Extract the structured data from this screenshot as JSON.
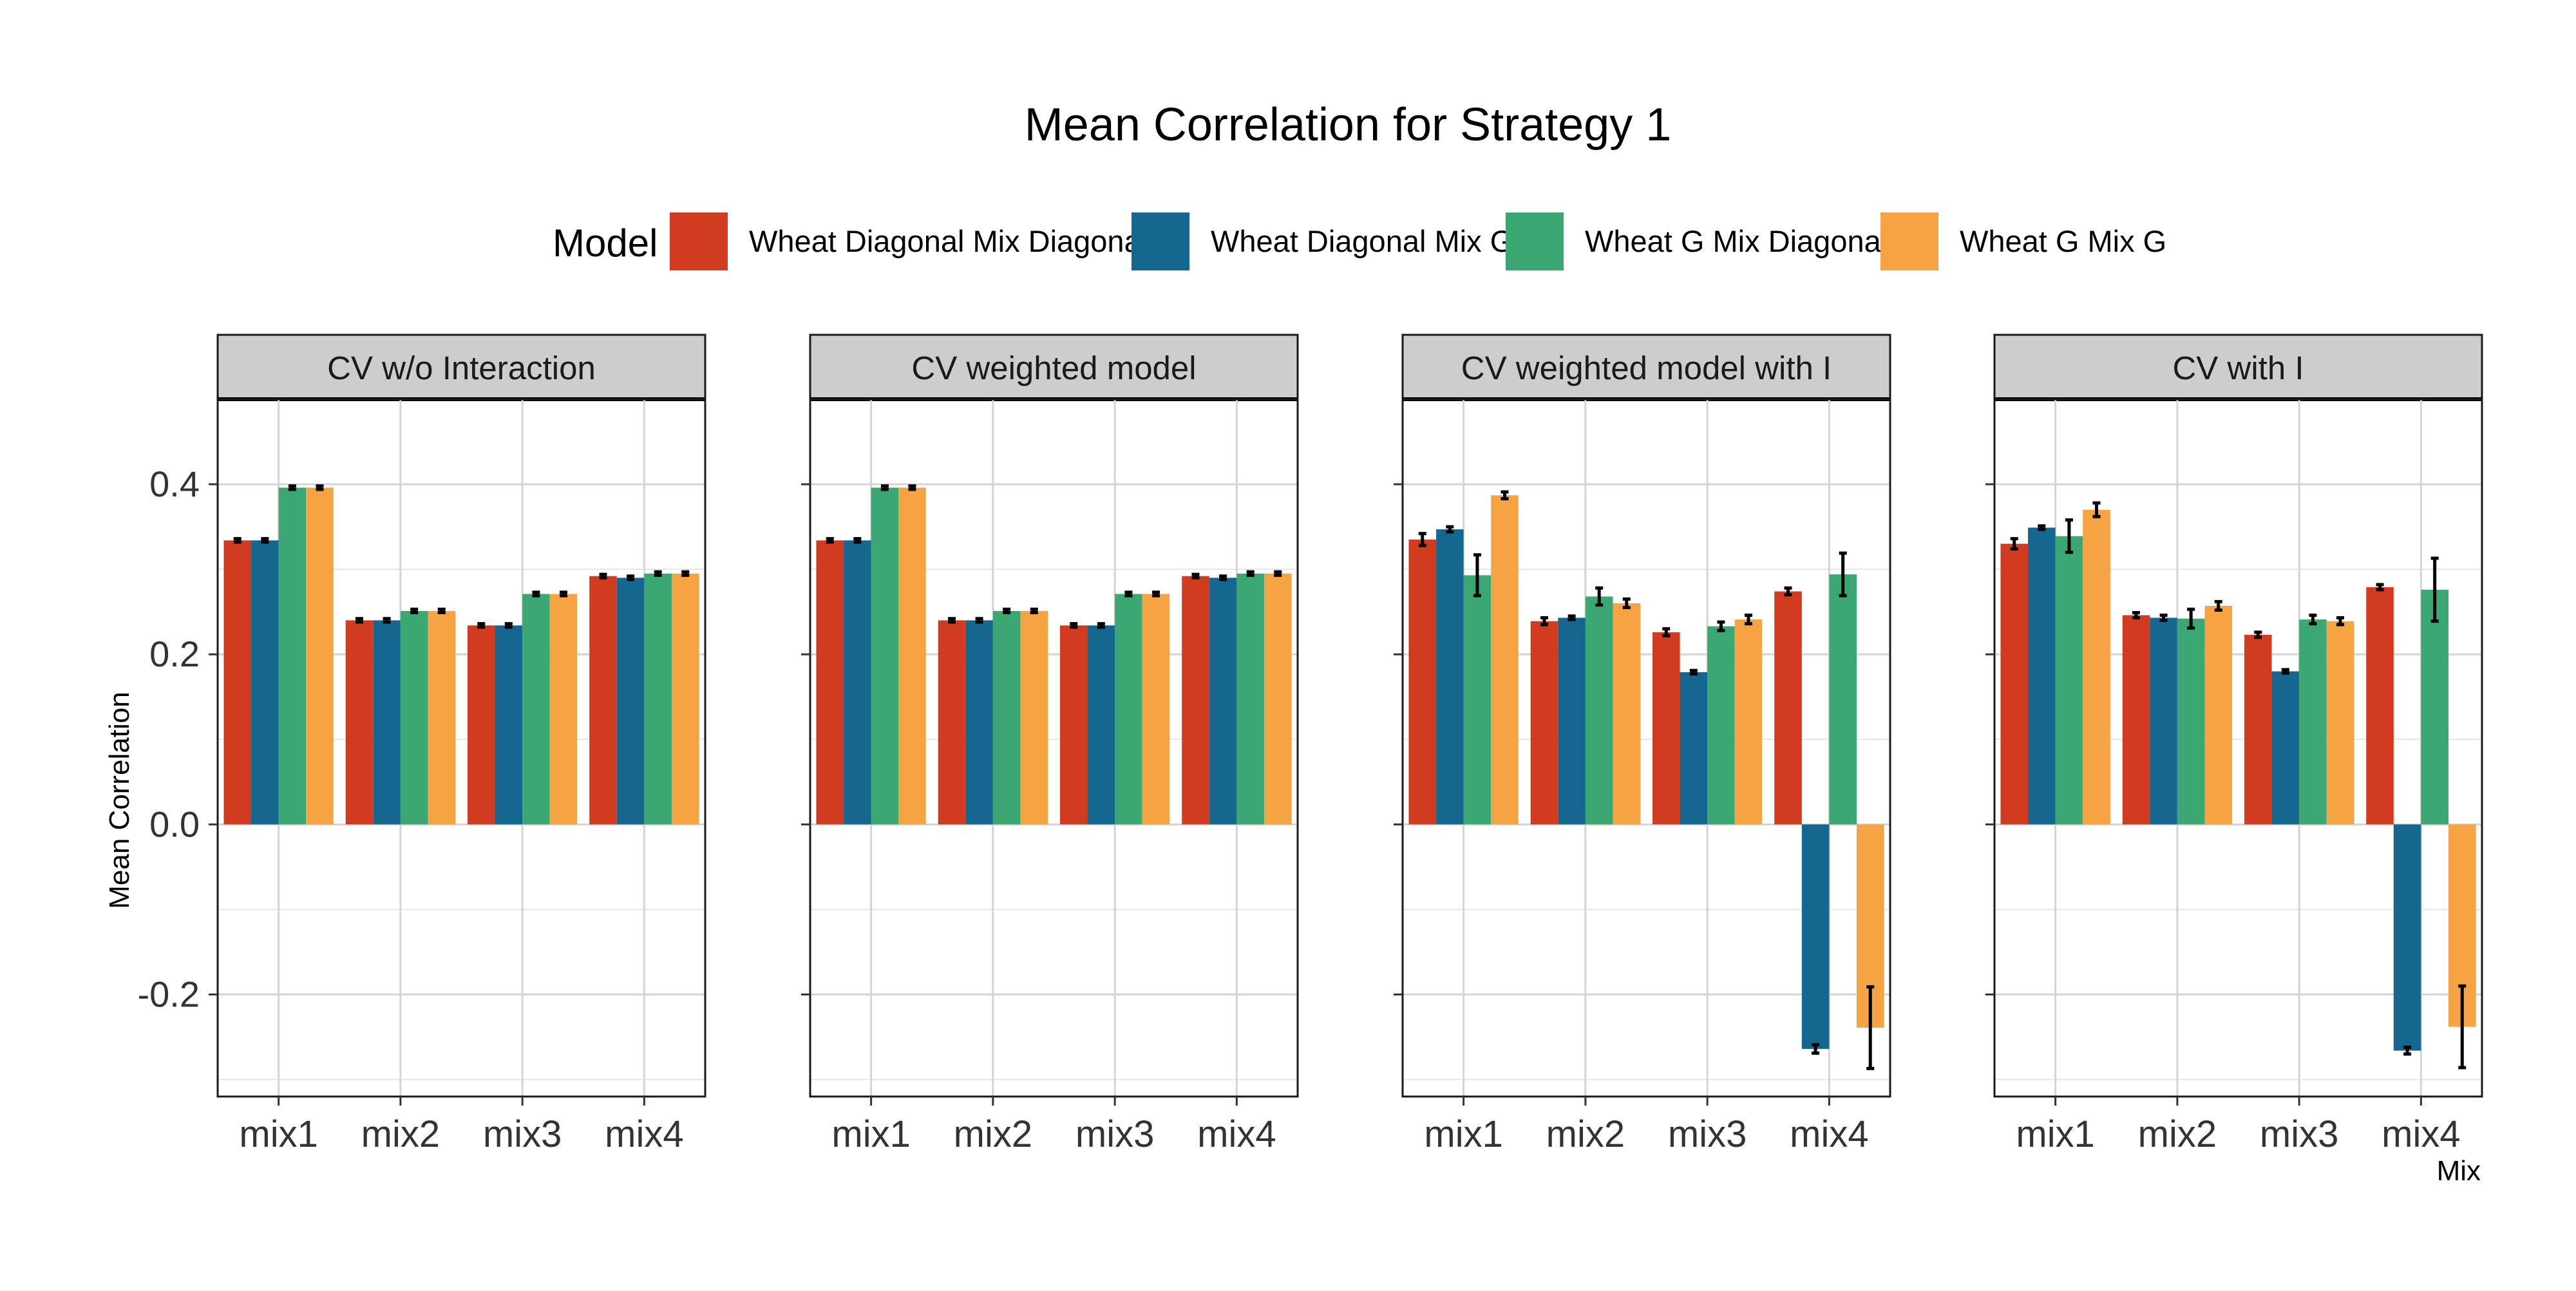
{
  "chart_data": {
    "type": "bar",
    "title": "Mean Correlation for Strategy 1",
    "xlabel": "Mix",
    "ylabel": "Mean Correlation",
    "ylim": [
      -0.32,
      0.5
    ],
    "yticks": [
      -0.2,
      0.0,
      0.2,
      0.4
    ],
    "ytick_labels": [
      "-0.2",
      "0.0",
      "0.2",
      "0.4"
    ],
    "grid": true,
    "legend": {
      "title": "Model",
      "position": "top"
    },
    "categories": [
      "mix1",
      "mix2",
      "mix3",
      "mix4"
    ],
    "series_names": [
      "Wheat Diagonal Mix Diagonal",
      "Wheat Diagonal Mix G",
      "Wheat G Mix Diagonal",
      "Wheat G Mix G"
    ],
    "colors": [
      "#D13C21",
      "#15678F",
      "#3BA773",
      "#F6A443"
    ],
    "panels": [
      {
        "strip": "CV w/o Interaction",
        "values": [
          [
            0.334,
            0.24,
            0.234,
            0.292
          ],
          [
            0.334,
            0.24,
            0.234,
            0.29
          ],
          [
            0.396,
            0.251,
            0.271,
            0.295
          ],
          [
            0.396,
            0.251,
            0.271,
            0.295
          ]
        ],
        "errors": [
          [
            0.002,
            0.002,
            0.002,
            0.002
          ],
          [
            0.002,
            0.002,
            0.002,
            0.002
          ],
          [
            0.002,
            0.002,
            0.002,
            0.002
          ],
          [
            0.002,
            0.002,
            0.002,
            0.002
          ]
        ]
      },
      {
        "strip": "CV weighted model",
        "values": [
          [
            0.334,
            0.24,
            0.234,
            0.292
          ],
          [
            0.334,
            0.24,
            0.234,
            0.29
          ],
          [
            0.396,
            0.251,
            0.271,
            0.295
          ],
          [
            0.396,
            0.251,
            0.271,
            0.295
          ]
        ],
        "errors": [
          [
            0.002,
            0.002,
            0.002,
            0.002
          ],
          [
            0.002,
            0.002,
            0.002,
            0.002
          ],
          [
            0.002,
            0.002,
            0.002,
            0.002
          ],
          [
            0.002,
            0.002,
            0.002,
            0.002
          ]
        ]
      },
      {
        "strip": "CV weighted model with I",
        "values": [
          [
            0.335,
            0.239,
            0.226,
            0.274
          ],
          [
            0.347,
            0.243,
            0.179,
            -0.264
          ],
          [
            0.293,
            0.268,
            0.233,
            0.294
          ],
          [
            0.387,
            0.26,
            0.241,
            -0.239
          ]
        ],
        "errors": [
          [
            0.007,
            0.004,
            0.004,
            0.004
          ],
          [
            0.003,
            0.002,
            0.002,
            0.005
          ],
          [
            0.024,
            0.01,
            0.005,
            0.025
          ],
          [
            0.004,
            0.005,
            0.005,
            0.048
          ]
        ]
      },
      {
        "strip": "CV with I",
        "values": [
          [
            0.33,
            0.246,
            0.223,
            0.279
          ],
          [
            0.349,
            0.243,
            0.18,
            -0.266
          ],
          [
            0.339,
            0.242,
            0.241,
            0.276
          ],
          [
            0.37,
            0.257,
            0.239,
            -0.238
          ]
        ],
        "errors": [
          [
            0.006,
            0.003,
            0.003,
            0.003
          ],
          [
            0.002,
            0.003,
            0.002,
            0.004
          ],
          [
            0.019,
            0.011,
            0.005,
            0.037
          ],
          [
            0.008,
            0.005,
            0.004,
            0.048
          ]
        ]
      }
    ]
  }
}
